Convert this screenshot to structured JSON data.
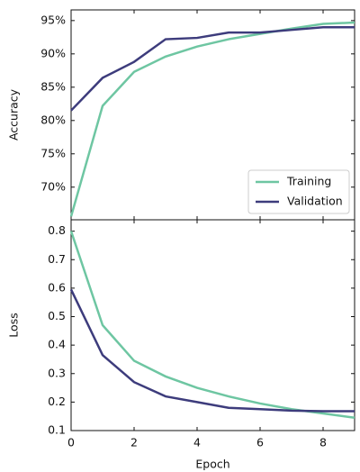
{
  "chart_data": [
    {
      "type": "line",
      "ylabel": "Accuracy",
      "x": [
        0,
        1,
        2,
        3,
        4,
        5,
        6,
        7,
        8,
        9
      ],
      "series": [
        {
          "name": "Training",
          "color": "#6ec6a2",
          "values": [
            65.6,
            82.2,
            87.3,
            89.6,
            91.1,
            92.2,
            93.0,
            93.8,
            94.5,
            94.7
          ]
        },
        {
          "name": "Validation",
          "color": "#3d3c7c",
          "values": [
            81.5,
            86.4,
            88.8,
            92.2,
            92.4,
            93.2,
            93.2,
            93.6,
            94.0,
            94.0
          ]
        }
      ],
      "xlim": [
        0,
        9
      ],
      "ylim": [
        65.1,
        96.6
      ],
      "yticks": [
        {
          "value": 70,
          "label": "70%"
        },
        {
          "value": 75,
          "label": "75%"
        },
        {
          "value": 80,
          "label": "80%"
        },
        {
          "value": 85,
          "label": "85%"
        },
        {
          "value": 90,
          "label": "90%"
        },
        {
          "value": 95,
          "label": "95%"
        }
      ],
      "legend": "lower right"
    },
    {
      "type": "line",
      "ylabel": "Loss",
      "xlabel": "Epoch",
      "x": [
        0,
        1,
        2,
        3,
        4,
        5,
        6,
        7,
        8,
        9
      ],
      "series": [
        {
          "name": "Training",
          "color": "#6ec6a2",
          "values": [
            0.8,
            0.47,
            0.345,
            0.29,
            0.25,
            0.22,
            0.195,
            0.175,
            0.16,
            0.145
          ]
        },
        {
          "name": "Validation",
          "color": "#3d3c7c",
          "values": [
            0.595,
            0.365,
            0.27,
            0.22,
            0.2,
            0.18,
            0.175,
            0.17,
            0.168,
            0.168
          ]
        }
      ],
      "xlim": [
        0,
        9
      ],
      "ylim": [
        0.1,
        0.84
      ],
      "xticks": [
        0,
        2,
        4,
        6,
        8
      ],
      "yticks": [
        0.1,
        0.2,
        0.3,
        0.4,
        0.5,
        0.6,
        0.7,
        0.8
      ]
    }
  ]
}
